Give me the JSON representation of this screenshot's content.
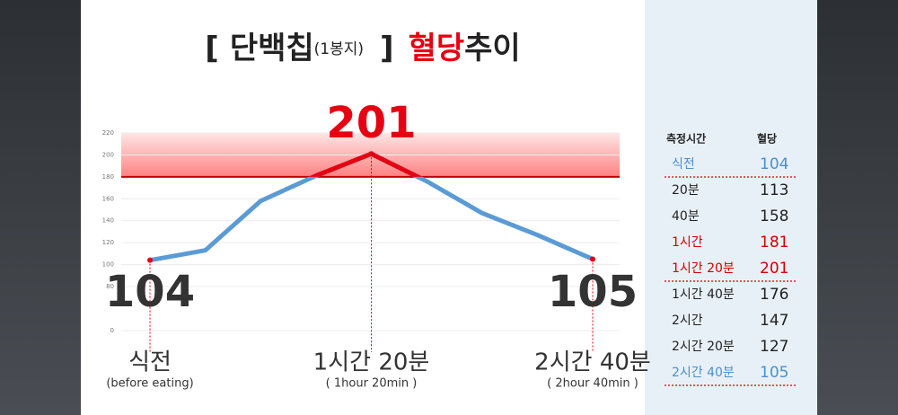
{
  "chart_data": {
    "type": "line",
    "title_parts": [
      "[",
      "단백칩",
      "(1봉지)",
      "]",
      "혈당",
      "추이"
    ],
    "categories": [
      "식전",
      null,
      null,
      null,
      "1시간 20분",
      null,
      null,
      null,
      "2시간 40분"
    ],
    "category_sublabels": [
      "(before eating)",
      null,
      null,
      null,
      "( 1hour 20min )",
      null,
      null,
      null,
      "( 2hour 40min )"
    ],
    "values": [
      104,
      113,
      158,
      181,
      201,
      176,
      147,
      127,
      105
    ],
    "color": "#5b9bd5",
    "highlight_color": "#e60012",
    "threshold": 180,
    "ylim": [
      0,
      220
    ],
    "yticks": [
      0,
      80,
      100,
      120,
      140,
      160,
      180,
      200,
      220
    ],
    "grid": true
  },
  "table": {
    "header": [
      "측정시간",
      "혈당"
    ],
    "rows": [
      [
        "식전",
        "104"
      ],
      [
        "20분",
        "113"
      ],
      [
        "40분",
        "158"
      ],
      [
        "1시간",
        "181"
      ],
      [
        "1시간 20분",
        "201"
      ],
      [
        "1시간 40분",
        "176"
      ],
      [
        "2시간",
        "147"
      ],
      [
        "2시간 20분",
        "127"
      ],
      [
        "2시간 40분",
        "105"
      ]
    ],
    "row_colors": [
      "#4a8fcf",
      "#222222",
      "#222222",
      "#d40000",
      "#d40000",
      "#222222",
      "#222222",
      "#222222",
      "#4a8fcf"
    ]
  }
}
